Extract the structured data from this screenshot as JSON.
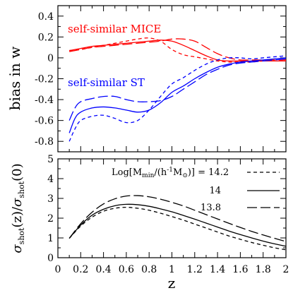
{
  "chart_data": [
    {
      "type": "line",
      "panel": "top",
      "ylabel": "bias in w",
      "xlim": [
        0,
        2
      ],
      "ylim": [
        -0.9,
        0.5
      ],
      "yticks": [
        -0.8,
        -0.6,
        -0.4,
        -0.2,
        0,
        0.2,
        0.4
      ],
      "annotations": [
        {
          "text": "self-similar MICE",
          "color": "#ff0000"
        },
        {
          "text": "self-similar ST",
          "color": "#0000ff"
        }
      ],
      "series": [
        {
          "group": "MICE",
          "color": "#ff0000",
          "dash": "solid",
          "x": [
            0.1,
            0.2,
            0.3,
            0.4,
            0.5,
            0.6,
            0.7,
            0.8,
            0.9,
            1.0,
            1.1,
            1.2,
            1.3,
            1.4,
            1.5,
            1.6,
            1.7,
            1.8,
            1.9,
            2.0
          ],
          "y": [
            0.07,
            0.09,
            0.11,
            0.12,
            0.13,
            0.14,
            0.15,
            0.16,
            0.17,
            0.16,
            0.12,
            0.07,
            0.02,
            -0.02,
            -0.03,
            -0.03,
            -0.03,
            -0.03,
            -0.03,
            -0.03
          ]
        },
        {
          "group": "MICE",
          "color": "#ff0000",
          "dash": "short",
          "x": [
            0.1,
            0.2,
            0.3,
            0.4,
            0.5,
            0.6,
            0.7,
            0.8,
            0.9,
            1.0,
            1.1,
            1.2,
            1.3,
            1.4,
            1.5,
            1.6,
            1.7,
            1.8,
            1.9,
            2.0
          ],
          "y": [
            0.07,
            0.08,
            0.1,
            0.12,
            0.14,
            0.16,
            0.18,
            0.19,
            0.16,
            0.08,
            0.03,
            0.01,
            -0.01,
            -0.03,
            -0.04,
            -0.04,
            -0.04,
            -0.03,
            -0.03,
            -0.03
          ]
        },
        {
          "group": "MICE",
          "color": "#ff0000",
          "dash": "long",
          "x": [
            0.1,
            0.2,
            0.3,
            0.4,
            0.5,
            0.6,
            0.7,
            0.8,
            0.9,
            1.0,
            1.1,
            1.2,
            1.3,
            1.4,
            1.5,
            1.6,
            1.7,
            1.8,
            1.9,
            2.0
          ],
          "y": [
            0.06,
            0.08,
            0.1,
            0.11,
            0.12,
            0.13,
            0.14,
            0.15,
            0.16,
            0.18,
            0.18,
            0.16,
            0.1,
            0.04,
            0.0,
            -0.02,
            -0.02,
            -0.02,
            -0.02,
            -0.02
          ]
        },
        {
          "group": "ST",
          "color": "#0000ff",
          "dash": "solid",
          "x": [
            0.1,
            0.15,
            0.2,
            0.3,
            0.4,
            0.5,
            0.6,
            0.7,
            0.8,
            0.9,
            1.0,
            1.1,
            1.2,
            1.3,
            1.4,
            1.5,
            1.6,
            1.7,
            1.8,
            1.9,
            2.0
          ],
          "y": [
            -0.72,
            -0.58,
            -0.52,
            -0.48,
            -0.47,
            -0.48,
            -0.5,
            -0.52,
            -0.5,
            -0.43,
            -0.33,
            -0.27,
            -0.2,
            -0.14,
            -0.09,
            -0.06,
            -0.04,
            -0.03,
            -0.02,
            -0.01,
            0.0
          ]
        },
        {
          "group": "ST",
          "color": "#0000ff",
          "dash": "short",
          "x": [
            0.1,
            0.15,
            0.2,
            0.3,
            0.4,
            0.5,
            0.6,
            0.7,
            0.8,
            0.9,
            1.0,
            1.1,
            1.2,
            1.3,
            1.4,
            1.5,
            1.6,
            1.7,
            1.8,
            1.9,
            2.0
          ],
          "y": [
            -0.8,
            -0.68,
            -0.6,
            -0.56,
            -0.55,
            -0.58,
            -0.62,
            -0.6,
            -0.5,
            -0.37,
            -0.25,
            -0.19,
            -0.12,
            -0.06,
            -0.02,
            0.0,
            0.0,
            -0.01,
            0.0,
            0.01,
            0.02
          ]
        },
        {
          "group": "ST",
          "color": "#0000ff",
          "dash": "long",
          "x": [
            0.1,
            0.15,
            0.2,
            0.3,
            0.4,
            0.5,
            0.6,
            0.7,
            0.8,
            0.9,
            1.0,
            1.1,
            1.2,
            1.3,
            1.4,
            1.5,
            1.6,
            1.7,
            1.8,
            1.9,
            2.0
          ],
          "y": [
            -0.6,
            -0.48,
            -0.42,
            -0.39,
            -0.37,
            -0.37,
            -0.4,
            -0.42,
            -0.42,
            -0.41,
            -0.37,
            -0.3,
            -0.23,
            -0.16,
            -0.11,
            -0.07,
            -0.05,
            -0.04,
            -0.03,
            -0.02,
            -0.01
          ]
        }
      ]
    },
    {
      "type": "line",
      "panel": "bottom",
      "xlabel": "z",
      "ylabel": "σshot(z)/σshot(0)",
      "xlim": [
        0,
        2
      ],
      "ylim": [
        0,
        5
      ],
      "xticks": [
        0,
        0.2,
        0.4,
        0.6,
        0.8,
        1,
        1.2,
        1.4,
        1.6,
        1.8,
        2
      ],
      "xtick_labels": [
        "0",
        "0.2",
        "0.4",
        "0.6",
        "0.8",
        "1",
        "1.2",
        "1.4",
        "1.6",
        "1.8",
        "2"
      ],
      "yticks": [
        0,
        1,
        2,
        3,
        4,
        5
      ],
      "legend": {
        "placement": "top-right",
        "prefix": "Log[M",
        "prefix_sub": "min",
        "mid": "/(h",
        "mid_sup": "-1",
        "mid2": "M",
        "mid2_sub": "⊙",
        "suffix": ")] = ",
        "entries": [
          "14.2",
          "14",
          "13.8"
        ]
      },
      "series": [
        {
          "name": "14.2",
          "color": "#000000",
          "dash": "short",
          "x": [
            0.1,
            0.2,
            0.3,
            0.4,
            0.5,
            0.6,
            0.7,
            0.8,
            0.9,
            1.0,
            1.1,
            1.2,
            1.3,
            1.4,
            1.5,
            1.6,
            1.7,
            1.8,
            1.9,
            2.0
          ],
          "y": [
            0.98,
            1.6,
            2.05,
            2.35,
            2.5,
            2.55,
            2.5,
            2.4,
            2.25,
            2.08,
            1.9,
            1.7,
            1.5,
            1.3,
            1.1,
            0.93,
            0.77,
            0.63,
            0.5,
            0.4
          ]
        },
        {
          "name": "14",
          "color": "#000000",
          "dash": "solid",
          "x": [
            0.1,
            0.2,
            0.3,
            0.4,
            0.5,
            0.6,
            0.7,
            0.8,
            0.9,
            1.0,
            1.1,
            1.2,
            1.3,
            1.4,
            1.5,
            1.6,
            1.7,
            1.8,
            1.9,
            2.0
          ],
          "y": [
            0.98,
            1.65,
            2.15,
            2.45,
            2.63,
            2.7,
            2.68,
            2.6,
            2.47,
            2.32,
            2.14,
            1.95,
            1.75,
            1.55,
            1.35,
            1.17,
            1.0,
            0.84,
            0.7,
            0.58
          ]
        },
        {
          "name": "13.8",
          "color": "#000000",
          "dash": "long",
          "x": [
            0.1,
            0.2,
            0.3,
            0.4,
            0.5,
            0.6,
            0.7,
            0.8,
            0.9,
            1.0,
            1.1,
            1.2,
            1.3,
            1.4,
            1.5,
            1.6,
            1.7,
            1.8,
            1.9,
            2.0
          ],
          "y": [
            0.98,
            1.72,
            2.3,
            2.72,
            2.98,
            3.12,
            3.14,
            3.08,
            2.96,
            2.8,
            2.62,
            2.4,
            2.18,
            1.96,
            1.74,
            1.53,
            1.33,
            1.15,
            0.98,
            0.82
          ]
        }
      ]
    }
  ]
}
